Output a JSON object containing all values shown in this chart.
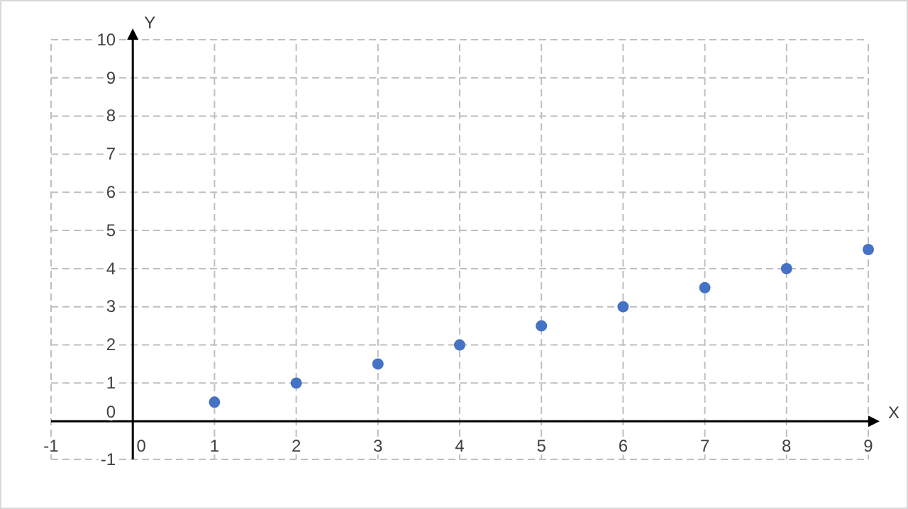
{
  "chart_data": {
    "type": "scatter",
    "xlabel": "X",
    "ylabel": "Y",
    "x": [
      1,
      2,
      3,
      4,
      5,
      6,
      7,
      8,
      9
    ],
    "series": [
      {
        "color": "#4472c4",
        "values": [
          0.5,
          1,
          1.5,
          2,
          2.5,
          3,
          3.5,
          4,
          4.5
        ]
      }
    ],
    "xlim": [
      -1,
      9
    ],
    "xticks": [
      -1,
      0,
      1,
      2,
      3,
      4,
      5,
      6,
      7,
      8,
      9
    ],
    "ylim": [
      -1,
      10
    ],
    "yticks": [
      -1,
      0,
      1,
      2,
      3,
      4,
      5,
      6,
      7,
      8,
      9,
      10
    ],
    "grid": true,
    "marker": "circle"
  }
}
